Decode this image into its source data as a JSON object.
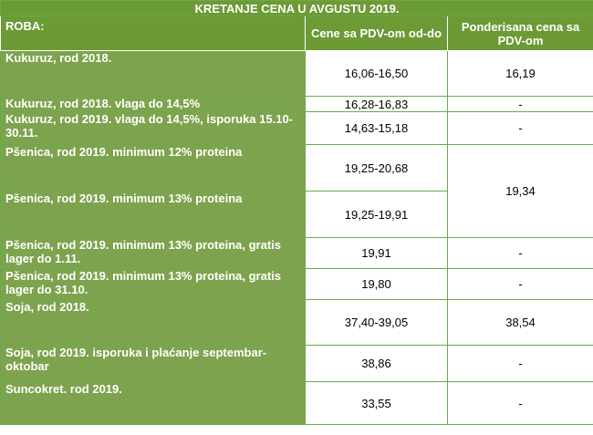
{
  "title": "KRETANJE CENA U AVGUSTU 2019.",
  "headers": {
    "roba": "ROBA:",
    "range": "Cene sa PDV-om od-do",
    "weighted": "Ponderisana cena sa PDV-om"
  },
  "rows": [
    {
      "name": "Kukuruz, rod 2018.",
      "range": "16,06-16,50",
      "weighted": "16,19"
    },
    {
      "name": "Kukuruz, rod 2018. vlaga do 14,5%",
      "range": "16,28-16,83",
      "weighted": "-"
    },
    {
      "name": "Kukuruz, rod 2019. vlaga do 14,5%, isporuka 15.10-30.11.",
      "range": "14,63-15,18",
      "weighted": "-"
    },
    {
      "name": "Pšenica, rod 2019. minimum 12% proteina",
      "range": "19,25-20,68",
      "weighted": "19,34"
    },
    {
      "name": "Pšenica, rod 2019. minimum 13% proteina",
      "range": "19,25-19,91"
    },
    {
      "name": "Pšenica, rod 2019. minimum 13% proteina, gratis lager do 1.11.",
      "range": "19,91",
      "weighted": "-"
    },
    {
      "name": "Pšenica, rod 2019. minimum 13% proteina, gratis lager do 31.10.",
      "range": "19,80",
      "weighted": "-"
    },
    {
      "name": "Soja, rod 2018.",
      "range": "37,40-39,05",
      "weighted": "38,54"
    },
    {
      "name": "Soja, rod 2019. isporuka i plaćanje septembar-oktobar",
      "range": "38,86",
      "weighted": "-"
    },
    {
      "name": "Suncokret. rod 2019.",
      "range": "33,55",
      "weighted": "-"
    }
  ]
}
